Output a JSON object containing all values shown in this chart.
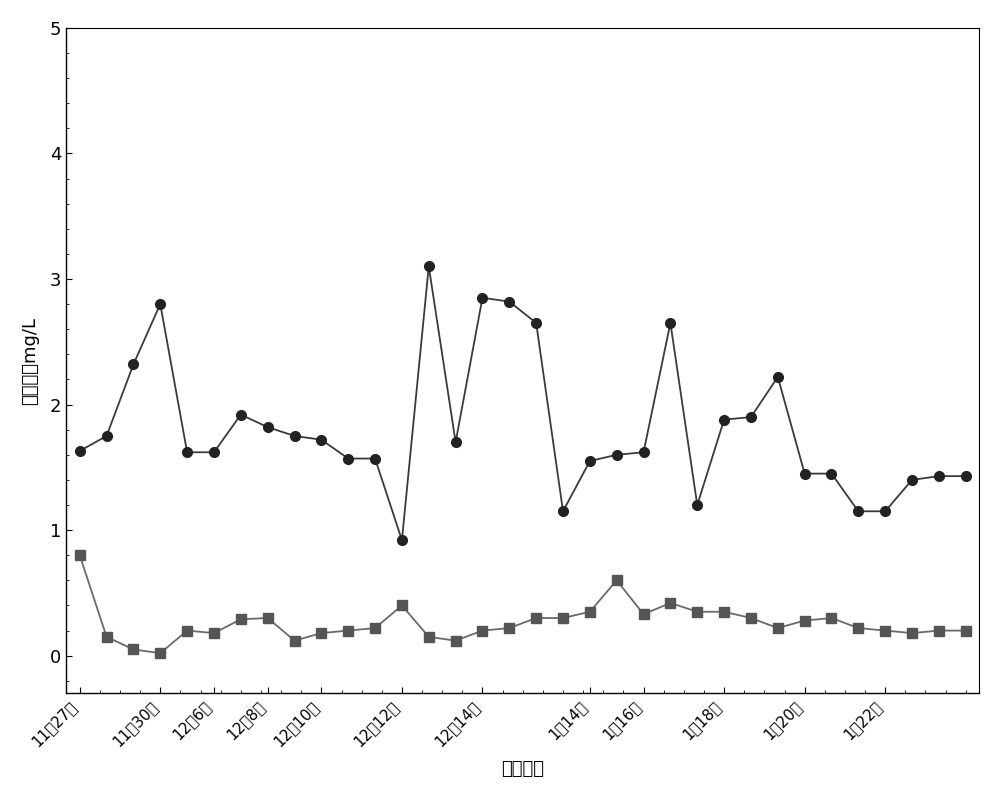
{
  "x_labels": [
    "11月27日",
    "11月30日",
    "12月6日",
    "12月8日",
    "12月10日",
    "12月12日",
    "12月14日",
    "1月14日",
    "1月16日",
    "1月18日",
    "1月20日",
    "1月22日"
  ],
  "series1_y": [
    1.63,
    1.75,
    2.32,
    2.8,
    1.62,
    1.62,
    1.92,
    1.82,
    1.75,
    1.72,
    1.57,
    1.57,
    0.92,
    3.1,
    1.7,
    2.85,
    2.82,
    2.65,
    1.15,
    1.55,
    1.6,
    1.62,
    2.65,
    1.2,
    1.88,
    1.9,
    2.22,
    1.45,
    1.45,
    1.15,
    1.15,
    1.4,
    1.43,
    1.43
  ],
  "series2_y": [
    0.8,
    0.15,
    0.05,
    0.02,
    0.2,
    0.18,
    0.29,
    0.3,
    0.12,
    0.18,
    0.2,
    0.22,
    0.4,
    0.15,
    0.12,
    0.2,
    0.22,
    0.3,
    0.3,
    0.35,
    0.6,
    0.33,
    0.42,
    0.35,
    0.35,
    0.3,
    0.22,
    0.28,
    0.3,
    0.22,
    0.2,
    0.18,
    0.2,
    0.2
  ],
  "xtick_positions": [
    0,
    3,
    5,
    7,
    9,
    12,
    15,
    19,
    21,
    24,
    27,
    30
  ],
  "ylabel": "氨氮浓度mg/L",
  "xlabel": "实验日期",
  "ylim_min": -0.3,
  "ylim_max": 5.0,
  "yticks": [
    0,
    1,
    2,
    3,
    4,
    5
  ],
  "series1_color": "#3a3a3a",
  "series2_color": "#6a6a6a",
  "background_color": "#ffffff",
  "fig_width": 10.0,
  "fig_height": 7.99
}
